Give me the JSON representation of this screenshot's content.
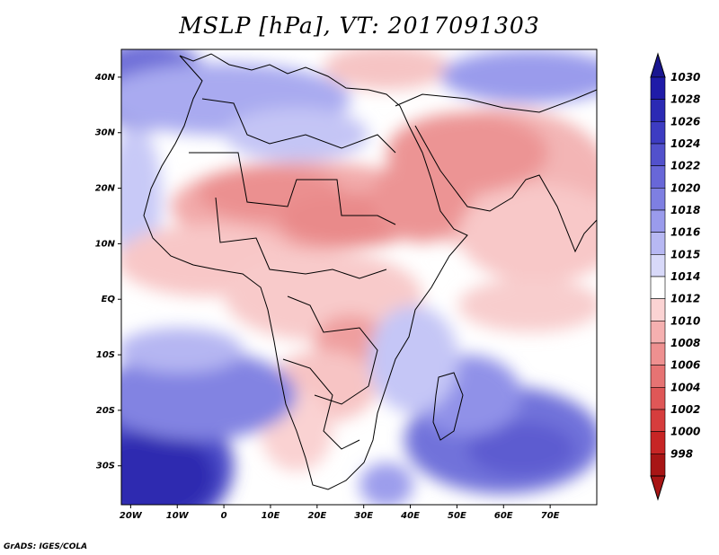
{
  "title": "MSLP [hPa], VT: 2017091303",
  "credit": "GrADS: IGES/COLA",
  "map": {
    "lon_labels": [
      "20W",
      "10W",
      "0",
      "10E",
      "20E",
      "30E",
      "40E",
      "50E",
      "60E",
      "70E"
    ],
    "lat_labels": [
      "40N",
      "30N",
      "20N",
      "10N",
      "EQ",
      "10S",
      "20S",
      "30S"
    ],
    "lon_range": [
      -22,
      80
    ],
    "lat_range": [
      -37,
      45
    ]
  },
  "colorbar": {
    "levels": [
      "1030",
      "1028",
      "1026",
      "1024",
      "1022",
      "1020",
      "1018",
      "1016",
      "1015",
      "1014",
      "1012",
      "1010",
      "1008",
      "1006",
      "1004",
      "1002",
      "1000",
      "998"
    ],
    "colors": [
      "#1f1ba8",
      "#2b2ab4",
      "#3d3cc2",
      "#5251cc",
      "#6867d8",
      "#7e7fe2",
      "#9a9bec",
      "#b7b8f3",
      "#d8d9f9",
      "#ffffff",
      "#fbd3d3",
      "#f5b0b0",
      "#ee9090",
      "#e67373",
      "#df5757",
      "#d63d3d",
      "#c72525",
      "#a81515"
    ]
  }
}
